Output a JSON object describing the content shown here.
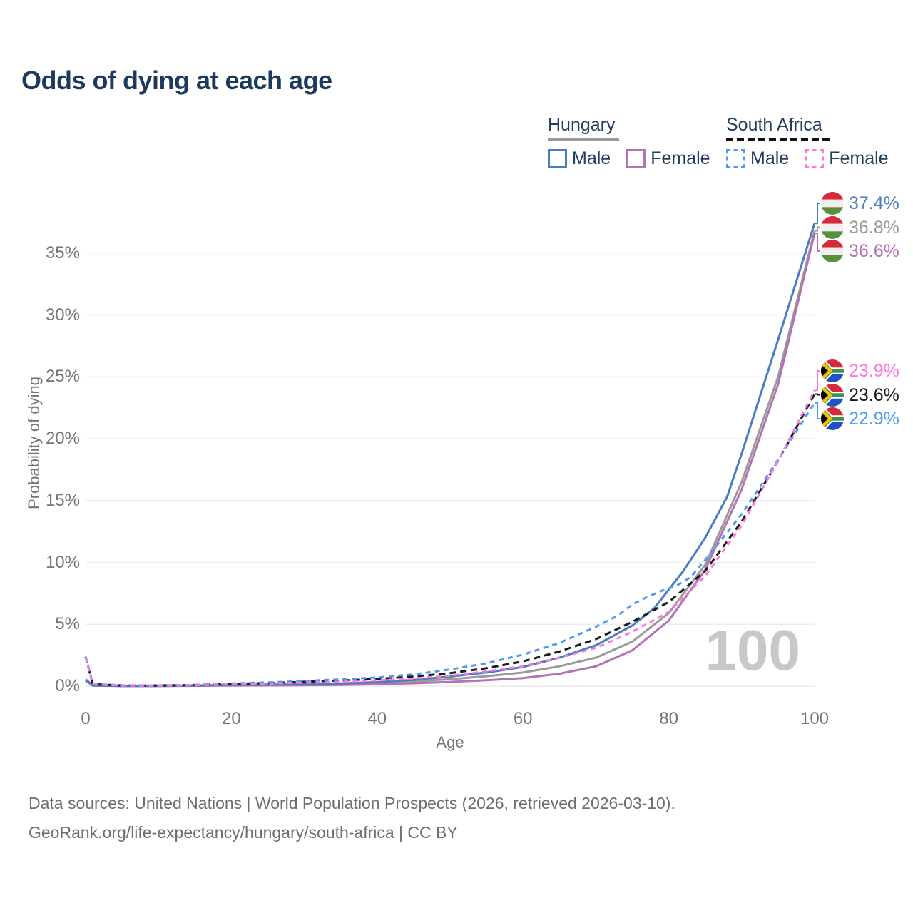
{
  "page": {
    "title": "Odds of dying at each age"
  },
  "legend": {
    "groups": [
      {
        "id": "hungary",
        "label": "Hungary",
        "line_style": "solid",
        "line_color": "#9a9a9a",
        "items": [
          {
            "label": "Male",
            "color": "#4a7cc0",
            "dashed": false
          },
          {
            "label": "Female",
            "color": "#b273b5",
            "dashed": false
          }
        ]
      },
      {
        "id": "southafrica",
        "label": "South Africa",
        "line_style": "dashed",
        "line_color": "#111111",
        "items": [
          {
            "label": "Male",
            "color": "#4f99f2",
            "dashed": true
          },
          {
            "label": "Female",
            "color": "#ff77dd",
            "dashed": true
          }
        ]
      }
    ]
  },
  "chart_data": {
    "type": "line",
    "title": "Odds of dying at each age",
    "xlabel": "Age",
    "ylabel": "Probability of dying",
    "xlim": [
      0,
      100
    ],
    "ylim": [
      0,
      39
    ],
    "x_ticks": [
      0,
      20,
      40,
      60,
      80,
      100
    ],
    "y_ticks_pct": [
      0,
      5,
      10,
      15,
      20,
      25,
      30,
      35
    ],
    "grid": "horizontal-only",
    "legend_position": "top-right",
    "watermark": "100",
    "series": [
      {
        "id": "hu-male",
        "name": "Hungary Male",
        "flag": "hu",
        "color": "#4a7cc0",
        "dashed": false,
        "end_value": 37.4,
        "end_label": "37.4%",
        "points": [
          [
            0,
            0.55
          ],
          [
            1,
            0.06
          ],
          [
            5,
            0.02
          ],
          [
            10,
            0.02
          ],
          [
            15,
            0.05
          ],
          [
            20,
            0.1
          ],
          [
            25,
            0.12
          ],
          [
            30,
            0.16
          ],
          [
            35,
            0.22
          ],
          [
            40,
            0.32
          ],
          [
            45,
            0.5
          ],
          [
            50,
            0.78
          ],
          [
            55,
            1.1
          ],
          [
            60,
            1.55
          ],
          [
            65,
            2.3
          ],
          [
            70,
            3.3
          ],
          [
            75,
            4.9
          ],
          [
            78,
            6.3
          ],
          [
            80,
            7.8
          ],
          [
            82,
            9.3
          ],
          [
            85,
            12.0
          ],
          [
            88,
            15.3
          ],
          [
            90,
            18.8
          ],
          [
            95,
            28.0
          ],
          [
            100,
            37.4
          ]
        ]
      },
      {
        "id": "hu-both",
        "name": "Hungary Both sexes",
        "flag": "hu",
        "color": "#9a9a9a",
        "dashed": false,
        "end_value": 36.8,
        "end_label": "36.8%",
        "points": [
          [
            0,
            0.5
          ],
          [
            1,
            0.05
          ],
          [
            5,
            0.018
          ],
          [
            10,
            0.018
          ],
          [
            15,
            0.04
          ],
          [
            20,
            0.07
          ],
          [
            25,
            0.09
          ],
          [
            30,
            0.11
          ],
          [
            35,
            0.16
          ],
          [
            40,
            0.24
          ],
          [
            45,
            0.37
          ],
          [
            50,
            0.56
          ],
          [
            55,
            0.8
          ],
          [
            60,
            1.1
          ],
          [
            65,
            1.6
          ],
          [
            70,
            2.3
          ],
          [
            75,
            3.6
          ],
          [
            80,
            5.9
          ],
          [
            85,
            9.8
          ],
          [
            90,
            16.5
          ],
          [
            95,
            25.0
          ],
          [
            100,
            36.8
          ]
        ]
      },
      {
        "id": "hu-female",
        "name": "Hungary Female",
        "flag": "hu",
        "color": "#b273b5",
        "dashed": false,
        "end_value": 36.6,
        "end_label": "36.6%",
        "points": [
          [
            0,
            0.45
          ],
          [
            1,
            0.04
          ],
          [
            5,
            0.015
          ],
          [
            10,
            0.015
          ],
          [
            15,
            0.03
          ],
          [
            20,
            0.05
          ],
          [
            25,
            0.06
          ],
          [
            30,
            0.07
          ],
          [
            35,
            0.1
          ],
          [
            40,
            0.15
          ],
          [
            45,
            0.23
          ],
          [
            50,
            0.34
          ],
          [
            55,
            0.48
          ],
          [
            60,
            0.65
          ],
          [
            65,
            1.0
          ],
          [
            70,
            1.6
          ],
          [
            75,
            2.9
          ],
          [
            80,
            5.3
          ],
          [
            85,
            9.4
          ],
          [
            90,
            15.9
          ],
          [
            95,
            24.4
          ],
          [
            100,
            36.6
          ]
        ]
      },
      {
        "id": "za-male",
        "name": "South Africa Male",
        "flag": "za",
        "color": "#4f99f2",
        "dashed": true,
        "end_value": 22.9,
        "end_label": "22.9%",
        "points": [
          [
            0,
            2.4
          ],
          [
            1,
            0.18
          ],
          [
            5,
            0.07
          ],
          [
            10,
            0.06
          ],
          [
            15,
            0.1
          ],
          [
            20,
            0.22
          ],
          [
            25,
            0.3
          ],
          [
            30,
            0.42
          ],
          [
            35,
            0.55
          ],
          [
            40,
            0.7
          ],
          [
            45,
            0.95
          ],
          [
            50,
            1.35
          ],
          [
            55,
            1.85
          ],
          [
            60,
            2.55
          ],
          [
            65,
            3.5
          ],
          [
            70,
            4.8
          ],
          [
            73,
            5.7
          ],
          [
            75,
            6.6
          ],
          [
            77,
            7.2
          ],
          [
            79,
            7.7
          ],
          [
            81,
            8.1
          ],
          [
            83,
            8.8
          ],
          [
            85,
            10.2
          ],
          [
            90,
            13.9
          ],
          [
            95,
            18.3
          ],
          [
            100,
            22.9
          ]
        ]
      },
      {
        "id": "za-both",
        "name": "South Africa Both sexes",
        "flag": "za",
        "color": "#1a1a1a",
        "dashed": true,
        "end_value": 23.6,
        "end_label": "23.6%",
        "points": [
          [
            0,
            2.35
          ],
          [
            1,
            0.16
          ],
          [
            5,
            0.06
          ],
          [
            10,
            0.05
          ],
          [
            15,
            0.09
          ],
          [
            20,
            0.18
          ],
          [
            25,
            0.25
          ],
          [
            30,
            0.35
          ],
          [
            35,
            0.45
          ],
          [
            40,
            0.58
          ],
          [
            45,
            0.78
          ],
          [
            50,
            1.05
          ],
          [
            55,
            1.45
          ],
          [
            60,
            2.0
          ],
          [
            65,
            2.8
          ],
          [
            70,
            3.8
          ],
          [
            75,
            5.2
          ],
          [
            80,
            6.8
          ],
          [
            85,
            9.3
          ],
          [
            90,
            13.3
          ],
          [
            95,
            18.2
          ],
          [
            100,
            23.6
          ]
        ]
      },
      {
        "id": "za-female",
        "name": "South Africa Female",
        "flag": "za",
        "color": "#ff77dd",
        "dashed": true,
        "end_value": 23.9,
        "end_label": "23.9%",
        "points": [
          [
            0,
            2.3
          ],
          [
            1,
            0.15
          ],
          [
            5,
            0.05
          ],
          [
            10,
            0.04
          ],
          [
            15,
            0.08
          ],
          [
            20,
            0.15
          ],
          [
            25,
            0.2
          ],
          [
            30,
            0.28
          ],
          [
            35,
            0.36
          ],
          [
            40,
            0.46
          ],
          [
            45,
            0.62
          ],
          [
            50,
            0.85
          ],
          [
            55,
            1.2
          ],
          [
            60,
            1.6
          ],
          [
            65,
            2.3
          ],
          [
            70,
            3.1
          ],
          [
            75,
            4.4
          ],
          [
            80,
            6.0
          ],
          [
            85,
            8.9
          ],
          [
            90,
            13.0
          ],
          [
            95,
            18.2
          ],
          [
            100,
            23.9
          ]
        ]
      }
    ]
  },
  "footer": {
    "line1": "Data sources: United Nations | World Population Prospects (2026, retrieved 2026-03-10).",
    "line2": "GeoRank.org/life-expectancy/hungary/south-africa | CC BY"
  }
}
